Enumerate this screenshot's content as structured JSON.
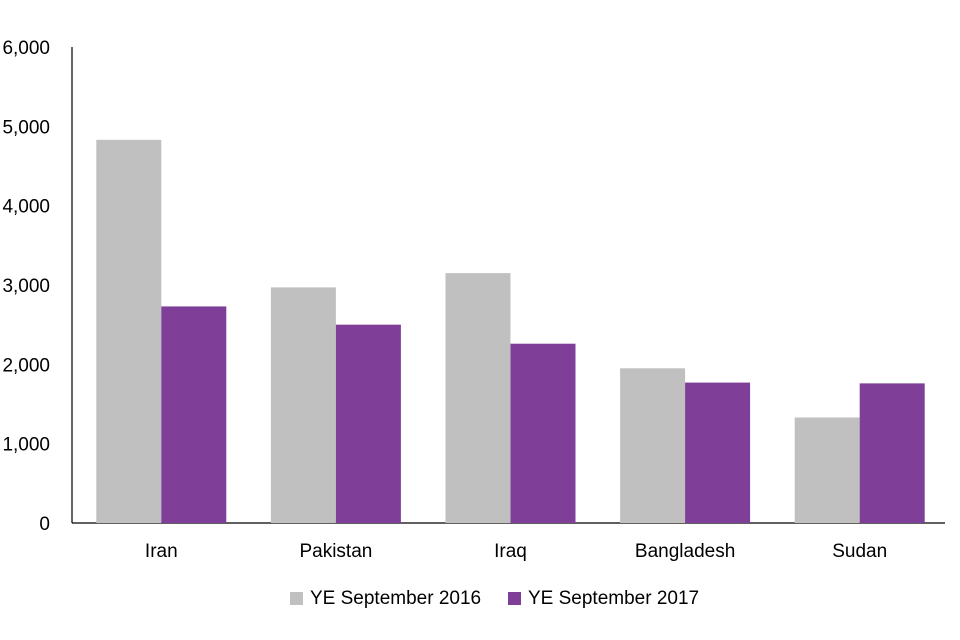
{
  "chart_data": {
    "type": "bar",
    "title": "",
    "xlabel": "",
    "ylabel": "",
    "categories": [
      "Iran",
      "Pakistan",
      "Iraq",
      "Bangladesh",
      "Sudan"
    ],
    "series": [
      {
        "name": "YE September 2016",
        "color": "#c0c0c0",
        "values": [
          4830,
          2970,
          3150,
          1950,
          1330
        ]
      },
      {
        "name": "YE September 2017",
        "color": "#7f3f98",
        "values": [
          2730,
          2500,
          2260,
          1770,
          1760
        ]
      }
    ],
    "ylim": [
      0,
      6000
    ],
    "yticks": [
      "0",
      "1,000",
      "2,000",
      "3,000",
      "4,000",
      "5,000",
      "6,000"
    ],
    "ytick_values": [
      0,
      1000,
      2000,
      3000,
      4000,
      5000,
      6000
    ],
    "grid": false,
    "legend_position": "bottom"
  }
}
